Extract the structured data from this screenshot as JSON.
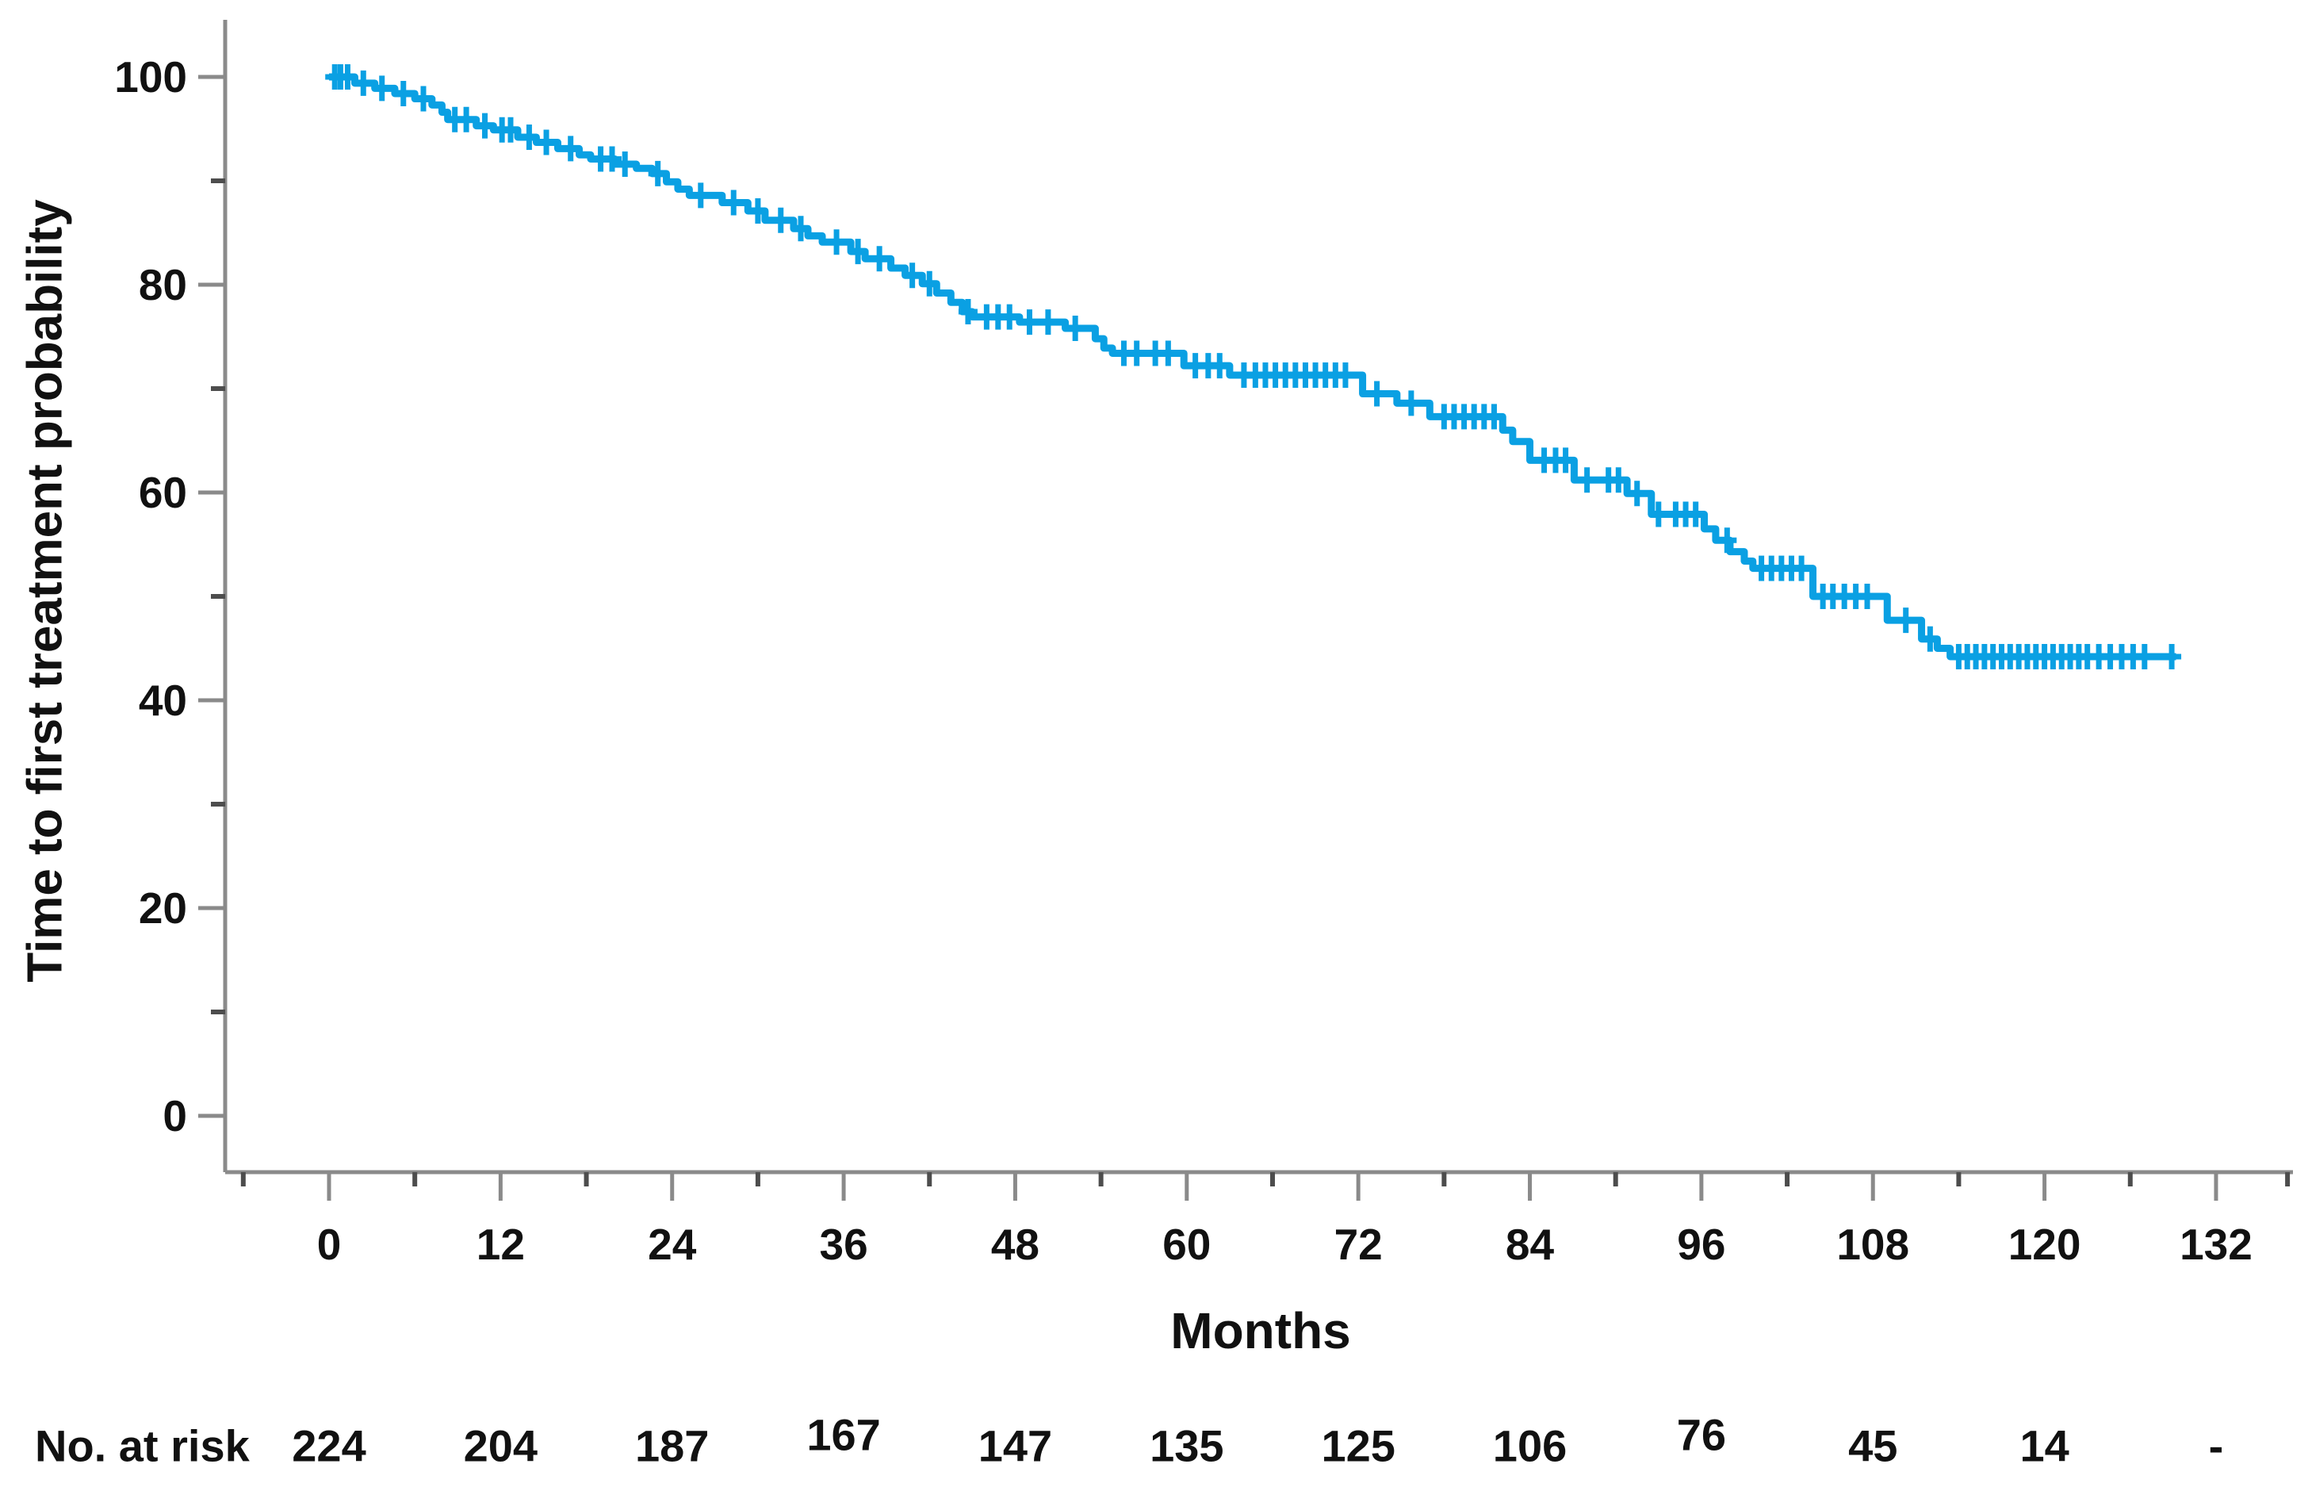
{
  "page": {
    "background": "#ffffff"
  },
  "axis": {
    "line_color": "#8a8a8a",
    "major_tick_color": "#8a8a8a",
    "minor_tick_color": "#4d4d4d",
    "text_color": "#111111"
  },
  "chart_data": {
    "type": "line",
    "subtype": "kaplan_meier_step",
    "title": "",
    "xlabel": "Months",
    "ylabel": "Time to first treatment probability",
    "xlim": [
      -7.5,
      138
    ],
    "ylim": [
      0,
      105.5
    ],
    "grid": false,
    "legend_position": "none",
    "x_ticks_major": [
      0,
      12,
      24,
      36,
      48,
      60,
      72,
      84,
      96,
      108,
      120,
      132
    ],
    "x_ticks_minor": [
      -6,
      6,
      18,
      30,
      42,
      54,
      66,
      78,
      90,
      102,
      114,
      126,
      137
    ],
    "y_ticks_major": [
      0,
      20,
      40,
      60,
      80,
      100
    ],
    "y_ticks_minor": [
      10,
      30,
      50,
      70,
      90
    ],
    "series": [
      {
        "name": "Time to first treatment probability",
        "color": "#0AA0E3",
        "start": [
          0,
          100
        ],
        "steps": [
          [
            1.8,
            99.4
          ],
          [
            3.2,
            98.9
          ],
          [
            4.6,
            98.4
          ],
          [
            6,
            97.9
          ],
          [
            7.2,
            97.3
          ],
          [
            7.9,
            96.6
          ],
          [
            8.3,
            95.9
          ],
          [
            10.3,
            95.3
          ],
          [
            11.5,
            94.9
          ],
          [
            13.2,
            94.2
          ],
          [
            14.5,
            93.7
          ],
          [
            16,
            93.1
          ],
          [
            17.5,
            92.5
          ],
          [
            18.3,
            92.1
          ],
          [
            20,
            91.6
          ],
          [
            21.5,
            91.2
          ],
          [
            22.6,
            90.7
          ],
          [
            23.6,
            89.9
          ],
          [
            24.4,
            89.2
          ],
          [
            25.2,
            88.6
          ],
          [
            27.5,
            87.9
          ],
          [
            29.3,
            87.1
          ],
          [
            30.5,
            86.2
          ],
          [
            32.5,
            85.4
          ],
          [
            33.5,
            84.7
          ],
          [
            34.5,
            84.1
          ],
          [
            36.5,
            83.2
          ],
          [
            37.5,
            82.5
          ],
          [
            39.3,
            81.6
          ],
          [
            40.3,
            80.9
          ],
          [
            41.5,
            80.1
          ],
          [
            42.5,
            79.2
          ],
          [
            43.5,
            78.3
          ],
          [
            44.3,
            77.4
          ],
          [
            45,
            76.9
          ],
          [
            48.3,
            76.4
          ],
          [
            51.5,
            75.8
          ],
          [
            53.6,
            74.8
          ],
          [
            54.2,
            73.9
          ],
          [
            54.8,
            73.4
          ],
          [
            59.8,
            72.2
          ],
          [
            63,
            71.3
          ],
          [
            72.3,
            69.5
          ],
          [
            74.7,
            68.6
          ],
          [
            77,
            67.3
          ],
          [
            82.1,
            66
          ],
          [
            82.8,
            64.9
          ],
          [
            84,
            63.1
          ],
          [
            87.1,
            61.2
          ],
          [
            90.8,
            59.9
          ],
          [
            92.5,
            57.9
          ],
          [
            96.2,
            56.5
          ],
          [
            97,
            55.4
          ],
          [
            98,
            54.3
          ],
          [
            99,
            53.4
          ],
          [
            99.6,
            52.7
          ],
          [
            103.8,
            50
          ],
          [
            109,
            47.7
          ],
          [
            111.4,
            45.9
          ],
          [
            112.5,
            45
          ],
          [
            113.4,
            44.2
          ]
        ],
        "end_time": 129.2,
        "censor_times": [
          0.4,
          0.8,
          1.3,
          2.4,
          3.7,
          5.2,
          6.6,
          8.8,
          9.6,
          10.9,
          12.1,
          12.7,
          14,
          15.2,
          16.9,
          19,
          19.8,
          20.7,
          23,
          26,
          28.3,
          30,
          31.6,
          33,
          35.5,
          37,
          38.5,
          40.8,
          42,
          44.7,
          46,
          46.8,
          47.6,
          49,
          50.3,
          52.2,
          55.6,
          56.5,
          57.8,
          58.7,
          60.6,
          61.5,
          62.3,
          64,
          64.8,
          65.5,
          66.2,
          66.9,
          67.6,
          68.3,
          69,
          69.7,
          70.4,
          71.1,
          73.3,
          75.7,
          78,
          78.7,
          79.4,
          80.1,
          80.8,
          81.5,
          85,
          85.8,
          86.5,
          88,
          89.5,
          90.2,
          91.5,
          93,
          94.2,
          94.9,
          95.6,
          97.8,
          100.2,
          100.9,
          101.6,
          102.3,
          103,
          104.5,
          105.2,
          106,
          106.8,
          107.6,
          110.3,
          112,
          114,
          114.6,
          115.2,
          115.8,
          116.4,
          117,
          117.6,
          118.2,
          118.8,
          119.4,
          120,
          120.6,
          121.2,
          121.8,
          122.4,
          123,
          123.8,
          124.6,
          125.4,
          126.2,
          127,
          128.9
        ]
      }
    ],
    "at_risk": {
      "label": "No. at risk",
      "times": [
        0,
        12,
        24,
        36,
        48,
        60,
        72,
        84,
        96,
        108,
        120,
        132
      ],
      "values": [
        "224",
        "204",
        "187",
        "167",
        "147",
        "135",
        "125",
        "106",
        "76",
        "45",
        "14",
        "-"
      ]
    }
  }
}
